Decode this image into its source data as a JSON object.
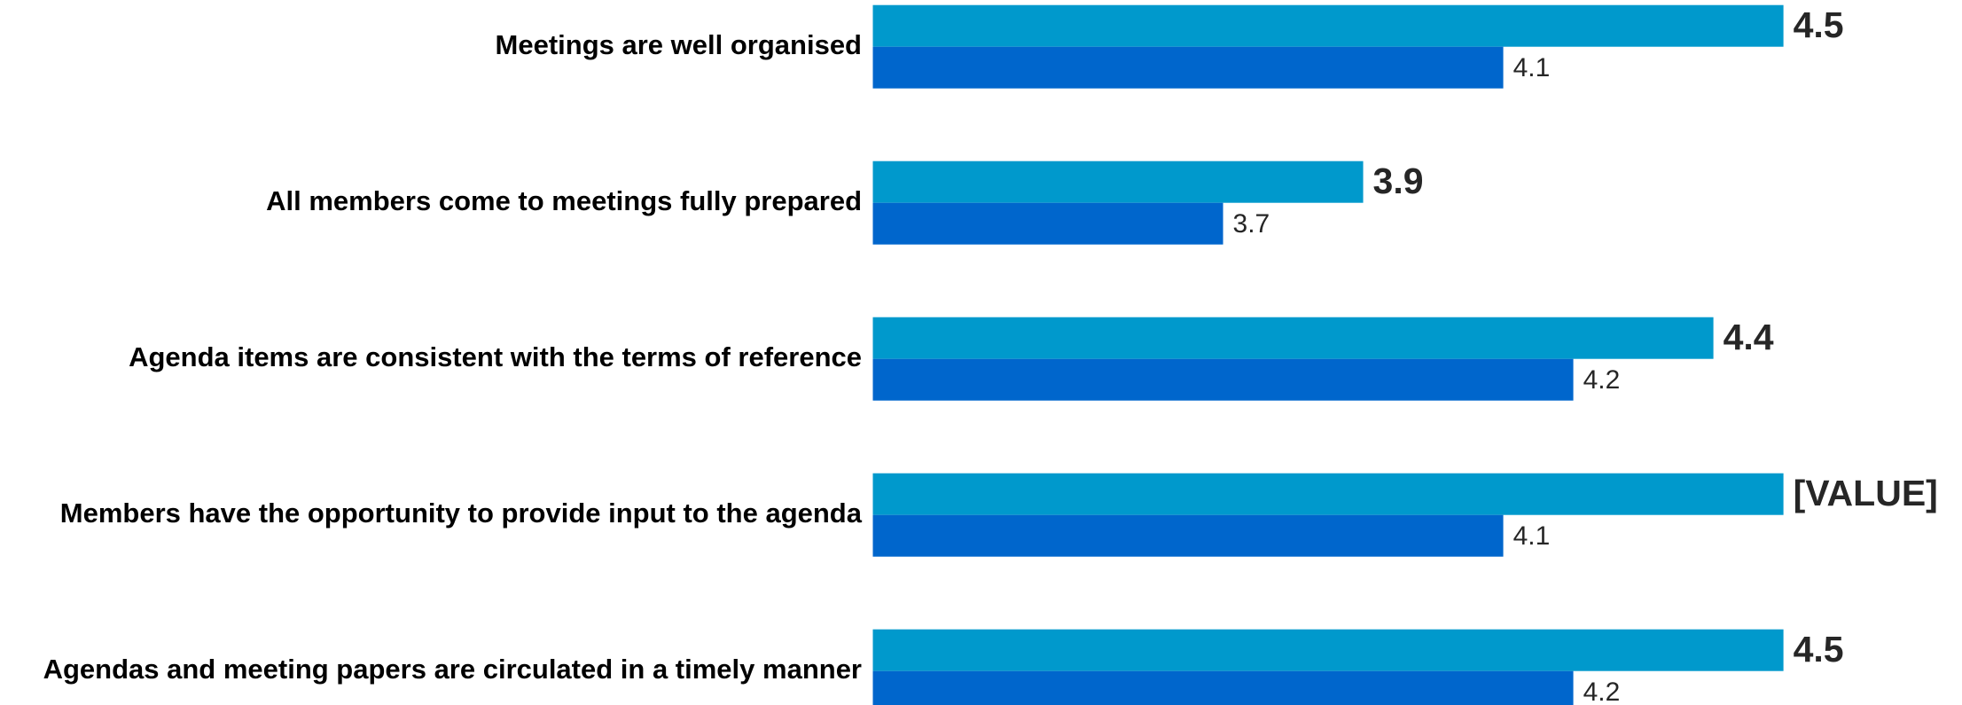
{
  "chart_data": {
    "type": "bar",
    "orientation": "horizontal",
    "categories": [
      "Meetings are well organised",
      "All members come to meetings fully prepared",
      "Agenda items are consistent with the terms of reference",
      "Members have the opportunity to provide input to the agenda",
      "Agendas and meeting papers are circulated in a timely manner"
    ],
    "series": [
      {
        "color": "#0099cc",
        "values": [
          4.5,
          3.9,
          4.4,
          4.5,
          4.5
        ],
        "value_labels": [
          "4.5",
          "3.9",
          "4.4",
          "[VALUE]",
          "4.5"
        ]
      },
      {
        "color": "#0066cc",
        "values": [
          4.1,
          3.7,
          4.2,
          4.1,
          4.2
        ]
      }
    ],
    "xlim": [
      3.2,
      4.5
    ]
  }
}
